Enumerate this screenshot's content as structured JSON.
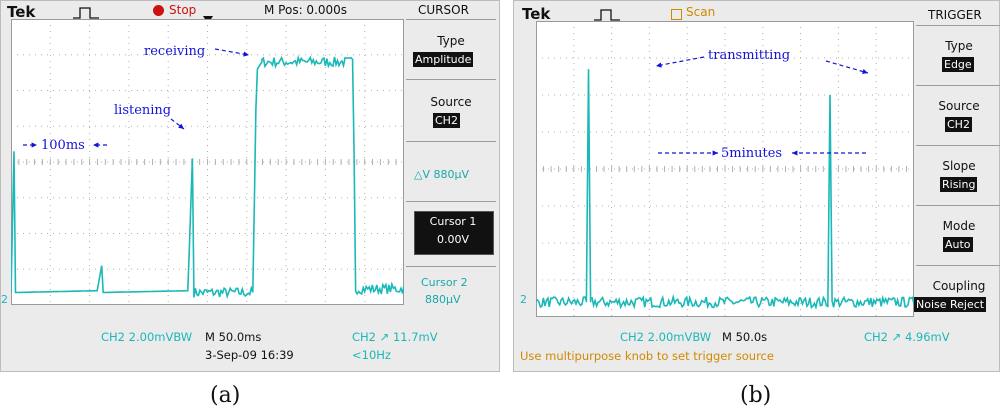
{
  "scope_a": {
    "brand": "Tek",
    "status": "Stop",
    "mpos": "M Pos: 0.000s",
    "menu_header": "CURSOR",
    "menu": {
      "type_label": "Type",
      "type_value": "Amplitude",
      "source_label": "Source",
      "source_value": "CH2",
      "delta_v": "△V 880µV",
      "cursor1_label": "Cursor 1",
      "cursor1_value": "0.00V",
      "cursor2_label": "Cursor 2",
      "cursor2_value": "880µV"
    },
    "ch_marker": "2",
    "bottom": {
      "ch_scale": "CH2  2.00mVBW",
      "timebase": "M 50.0ms",
      "trigger": "CH2 ↗ 11.7mV",
      "date": "3-Sep-09 16:39",
      "freq": "<10Hz"
    },
    "caption": "(a)"
  },
  "scope_b": {
    "brand": "Tek",
    "status": "Scan",
    "menu_header": "TRIGGER",
    "menu": {
      "type_label": "Type",
      "type_value": "Edge",
      "source_label": "Source",
      "source_value": "CH2",
      "slope_label": "Slope",
      "slope_value": "Rising",
      "mode_label": "Mode",
      "mode_value": "Auto",
      "coupling_label": "Coupling",
      "coupling_value": "Noise Reject"
    },
    "ch_marker": "2",
    "bottom": {
      "ch_scale": "CH2  2.00mVBW",
      "timebase": "M 50.0s",
      "trigger": "CH2 ↗ 4.96mV",
      "hint": "Use multipurpose knob to set trigger source"
    },
    "caption": "(b)"
  },
  "colors": {
    "trace": "#1ab8b8",
    "annotation": "#1414d8",
    "grid": "#b0b0b0",
    "screen": "#ffffff"
  },
  "chart_data": [
    {
      "type": "line",
      "panel": "a",
      "xlabel": "",
      "ylabel": "",
      "x_divisions": 10,
      "y_divisions": 8,
      "grid": true,
      "annotations": [
        "receiving",
        "listening",
        "100ms"
      ],
      "series": [
        {
          "values": [
            [
              0.0,
              0.35
            ],
            [
              0.1,
              4.3
            ],
            [
              0.15,
              0.35
            ],
            [
              2.85,
              0.4
            ],
            [
              3.0,
              1.1
            ],
            [
              3.05,
              0.35
            ],
            [
              5.85,
              0.4
            ],
            [
              6.0,
              4.1
            ],
            [
              6.05,
              0.35
            ],
            [
              8.0,
              0.35
            ],
            [
              8.1,
              5.5
            ],
            [
              8.15,
              6.6
            ],
            [
              8.3,
              6.8
            ],
            [
              11.3,
              6.8
            ],
            [
              11.35,
              4.2
            ],
            [
              11.4,
              0.45
            ],
            [
              13.0,
              0.45
            ]
          ]
        }
      ]
    },
    {
      "type": "line",
      "panel": "b",
      "xlabel": "",
      "ylabel": "",
      "x_divisions": 10,
      "y_divisions": 8,
      "grid": true,
      "annotations": [
        "transmitting",
        "5minutes"
      ],
      "series": [
        {
          "values": [
            [
              0.0,
              0.4
            ],
            [
              1.2,
              0.4
            ],
            [
              1.25,
              6.7
            ],
            [
              1.3,
              0.4
            ],
            [
              6.95,
              0.4
            ],
            [
              7.0,
              6.0
            ],
            [
              7.05,
              0.4
            ],
            [
              9.0,
              0.4
            ]
          ]
        }
      ]
    }
  ]
}
